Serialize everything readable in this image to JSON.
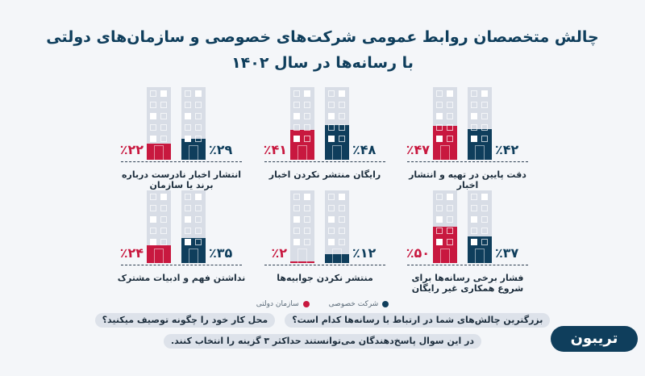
{
  "title_line1": "چالش متخصصان روابط عمومی شرکت‌های خصوصی و سازمان‌های دولتی",
  "title_line2": "با رسانه‌ها در سال ۱۴۰۲",
  "colors": {
    "private": "#0f3e5c",
    "government": "#c8183f",
    "building": "#d8dde6",
    "background": "#f4f6f9"
  },
  "legend": {
    "private": "شرکت خصوصی",
    "government": "سازمان دولتی"
  },
  "questions": {
    "q1": "بزرگترین چالش‌های شما در ارتباط با رسانه‌ها کدام است؟",
    "q2": "محل کار خود را چگونه توصیف میکنید؟",
    "note": "در این سوال پاسخ‌دهندگان می‌توانستند حداکثر ۳ گزینه را انتخاب کنند."
  },
  "logo": "تریبون",
  "chart_data": {
    "type": "bar",
    "ylim": [
      0,
      100
    ],
    "series_names": [
      "شرکت خصوصی",
      "سازمان دولتی"
    ],
    "categories": [
      {
        "label": "دقت پایین در تهیه و انتشار اخبار",
        "private": 42,
        "government": 47,
        "private_label": "٪۴۲",
        "government_label": "٪۴۷"
      },
      {
        "label": "رایگان منتشر نکردن اخبار",
        "private": 48,
        "government": 41,
        "private_label": "٪۴۸",
        "government_label": "٪۴۱"
      },
      {
        "label": "انتشار اخبار نادرست درباره برند یا سازمان",
        "private": 29,
        "government": 22,
        "private_label": "٪۲۹",
        "government_label": "٪۲۲"
      },
      {
        "label": "فشار برخی رسانه‌ها برای شروع همکاری غیر رایگان",
        "private": 37,
        "government": 50,
        "private_label": "٪۳۷",
        "government_label": "٪۵۰"
      },
      {
        "label": "منتشر نکردن جوابیه‌ها",
        "private": 12,
        "government": 2,
        "private_label": "٪۱۲",
        "government_label": "٪۲"
      },
      {
        "label": "نداشتن فهم و ادبیات مشترک",
        "private": 35,
        "government": 24,
        "private_label": "٪۳۵",
        "government_label": "٪۲۴"
      }
    ]
  }
}
